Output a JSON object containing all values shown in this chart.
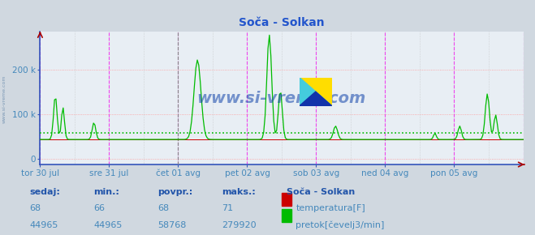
{
  "title": "Soča - Solkan",
  "title_color": "#2255cc",
  "bg_color": "#d0d8e0",
  "plot_bg_color": "#e8eef4",
  "watermark": "www.si-vreme.com",
  "xlabel_color": "#4488bb",
  "ylabel_color": "#4488bb",
  "x_labels": [
    "tor 30 jul",
    "sre 31 jul",
    "čet 01 avg",
    "pet 02 avg",
    "sob 03 avg",
    "ned 04 avg",
    "pon 05 avg"
  ],
  "y_tick_labels": [
    "0",
    "100 k",
    "200 k"
  ],
  "ymax": 285000,
  "ymin": -12000,
  "temp_line_color": "#cc0000",
  "flow_line_color": "#00bb00",
  "avg_line_color": "#00bb00",
  "avg_line_value": 58768,
  "temp_value": 68,
  "temp_min": 66,
  "temp_avg": 68,
  "temp_max": 71,
  "flow_value": 44965,
  "flow_min": 44965,
  "flow_avg": 58768,
  "flow_max": 279920,
  "legend_title": "Soča - Solkan",
  "n_points": 336,
  "sidebar_text": "www.si-vreme.com",
  "spine_color": "#3355bb",
  "hgrid_color": "#ff9999",
  "vgrid_magenta": "#ee44ee",
  "vgrid_dark": "#888888"
}
